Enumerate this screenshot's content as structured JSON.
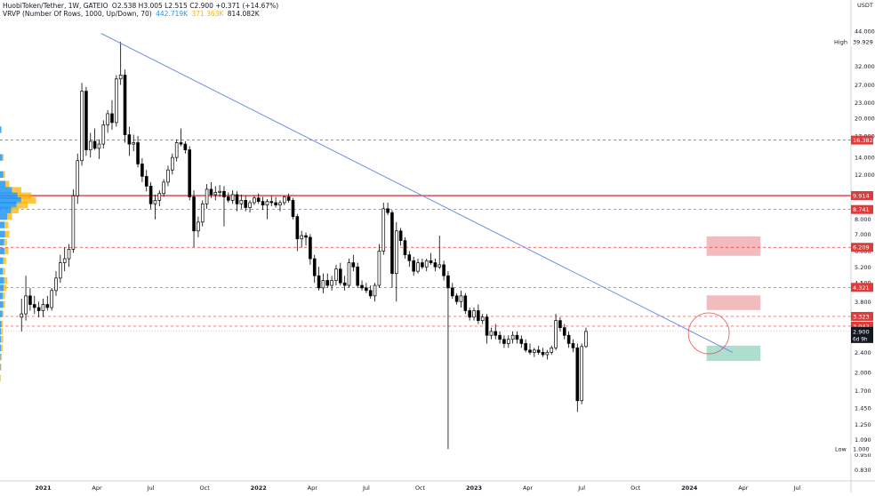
{
  "header": {
    "symbol_line": "HuobiToken/Tether, 1W, GATEIO",
    "ohlc": "O2.538  H3.005  L2.515  C2.900  +0.371 (+14.67%)",
    "vrvp_label": "VRVP (Number Of Rows, 1000, Up/Down, 70)",
    "vrvp_up": "442.719K",
    "vrvp_down": "371.363K",
    "vrvp_total": "814.082K",
    "currency": "USDT"
  },
  "colors": {
    "up_volume": "#2196f3",
    "down_volume": "#ffb300",
    "trendline": "#6a8ee8",
    "level_red": "#e03a3a",
    "resistance_zone": "#f0b0b3",
    "support_zone": "#9fd8c8",
    "price_label": "#131722",
    "candle": "#000000"
  },
  "chart_data": {
    "type": "candlestick",
    "title": "HuobiToken/Tether, 1W, GATEIO",
    "ylabel": "USDT",
    "y_scale": "log",
    "ylim": [
      0.75,
      52
    ],
    "x_ticks": [
      "2021",
      "Apr",
      "Jul",
      "Oct",
      "2022",
      "Apr",
      "Jul",
      "Oct",
      "2023",
      "Apr",
      "Jul",
      "Oct",
      "2024",
      "Apr",
      "Jul"
    ],
    "y_ticks": [
      44.0,
      32.0,
      27.0,
      23.0,
      20.0,
      17.0,
      14.0,
      12.0,
      8.0,
      7.0,
      6.0,
      5.2,
      4.5,
      3.8,
      3.3,
      2.8,
      2.4,
      2.0,
      1.7,
      1.45,
      1.25,
      1.09,
      0.95,
      0.83
    ],
    "current_price": 2.9,
    "countdown": "6d 9h",
    "high": {
      "label": "High",
      "value": "39.929"
    },
    "low": {
      "label": "Low",
      "value": "1.000"
    },
    "levels": [
      {
        "value": 16.382,
        "label": "16.382",
        "style": "dashed"
      },
      {
        "value": 9.914,
        "label": "9.914",
        "style": "solid"
      },
      {
        "value": 8.741,
        "label": "8.741",
        "style": "dashed"
      },
      {
        "value": 6.209,
        "label": "6.209",
        "style": "dashed"
      },
      {
        "value": 4.321,
        "label": "4.321",
        "style": "dashed"
      },
      {
        "value": 3.323,
        "label": "3.323",
        "style": "dashed"
      },
      {
        "value": 3.042,
        "label": "3.042",
        "style": "dashed"
      }
    ],
    "zones": [
      {
        "kind": "resistance",
        "from": 5.75,
        "to": 6.85,
        "start": 2024.08
      },
      {
        "kind": "resistance",
        "from": 3.52,
        "to": 4.02,
        "start": 2024.08
      },
      {
        "kind": "support",
        "from": 2.22,
        "to": 2.55,
        "start": 2024.08
      }
    ],
    "trendline": {
      "from": [
        2021.27,
        43.0
      ],
      "to": [
        2024.2,
        2.4
      ]
    },
    "highlight_circle": {
      "t": 2024.09,
      "price": 2.85
    },
    "volume_profile": [
      [
        18.0,
        0.2,
        0.2
      ],
      [
        14.0,
        0.5,
        0.3
      ],
      [
        12.0,
        0.7,
        0.4
      ],
      [
        11.0,
        1.2,
        0.8
      ],
      [
        10.4,
        2.6,
        2.0
      ],
      [
        9.9,
        3.8,
        3.0
      ],
      [
        9.5,
        4.6,
        3.2
      ],
      [
        9.1,
        3.6,
        2.4
      ],
      [
        8.7,
        2.4,
        1.6
      ],
      [
        8.2,
        1.6,
        1.0
      ],
      [
        7.6,
        1.0,
        0.8
      ],
      [
        7.0,
        1.1,
        0.9
      ],
      [
        6.5,
        0.9,
        0.6
      ],
      [
        6.0,
        1.0,
        0.8
      ],
      [
        5.5,
        0.7,
        0.6
      ],
      [
        5.0,
        0.6,
        0.5
      ],
      [
        4.6,
        0.9,
        0.7
      ],
      [
        4.3,
        0.8,
        0.6
      ],
      [
        4.0,
        0.6,
        0.5
      ],
      [
        3.7,
        0.7,
        0.4
      ],
      [
        3.4,
        0.5,
        0.3
      ],
      [
        3.1,
        0.3,
        0.3
      ],
      [
        2.9,
        0.2,
        0.4
      ],
      [
        2.7,
        0.2,
        0.5
      ],
      [
        2.5,
        0.2,
        0.4
      ],
      [
        2.3,
        0.1,
        0.3
      ],
      [
        2.1,
        0.1,
        0.2
      ],
      [
        1.9,
        0.05,
        0.1
      ]
    ],
    "candles": [
      [
        2020.9,
        3.3,
        3.9,
        2.9,
        3.4
      ],
      [
        2020.92,
        3.4,
        4.8,
        3.2,
        4.0
      ],
      [
        2020.94,
        4.0,
        4.3,
        3.5,
        3.7
      ],
      [
        2020.96,
        3.7,
        4.0,
        3.4,
        3.6
      ],
      [
        2020.98,
        3.6,
        3.8,
        3.3,
        3.5
      ],
      [
        2021.0,
        3.5,
        3.9,
        3.3,
        3.7
      ],
      [
        2021.02,
        3.7,
        4.0,
        3.5,
        3.6
      ],
      [
        2021.04,
        3.6,
        4.3,
        3.5,
        4.2
      ],
      [
        2021.06,
        4.2,
        5.0,
        4.0,
        4.7
      ],
      [
        2021.08,
        4.7,
        5.8,
        4.5,
        5.4
      ],
      [
        2021.1,
        5.4,
        6.2,
        5.0,
        5.6
      ],
      [
        2021.12,
        5.6,
        6.4,
        5.2,
        6.1
      ],
      [
        2021.14,
        6.1,
        10.5,
        5.9,
        9.9
      ],
      [
        2021.16,
        9.9,
        14.5,
        9.2,
        13.6
      ],
      [
        2021.18,
        13.6,
        27.5,
        13.0,
        25.5
      ],
      [
        2021.2,
        25.5,
        26.5,
        14.2,
        15.0
      ],
      [
        2021.22,
        15.0,
        17.5,
        14.0,
        16.2
      ],
      [
        2021.24,
        16.2,
        18.2,
        15.0,
        15.2
      ],
      [
        2021.26,
        15.2,
        16.5,
        13.8,
        15.8
      ],
      [
        2021.28,
        15.8,
        19.6,
        15.2,
        18.8
      ],
      [
        2021.3,
        18.8,
        21.5,
        17.5,
        20.8
      ],
      [
        2021.32,
        20.8,
        23.5,
        18.0,
        19.2
      ],
      [
        2021.34,
        19.2,
        29.5,
        18.5,
        28.5
      ],
      [
        2021.36,
        28.5,
        39.9,
        27.0,
        29.5
      ],
      [
        2021.38,
        29.5,
        31.0,
        16.0,
        17.2
      ],
      [
        2021.4,
        17.2,
        18.5,
        14.2,
        15.8
      ],
      [
        2021.42,
        15.8,
        17.2,
        14.8,
        16.0
      ],
      [
        2021.44,
        16.0,
        17.0,
        12.8,
        13.2
      ],
      [
        2021.46,
        13.2,
        13.9,
        11.2,
        11.8
      ],
      [
        2021.48,
        11.8,
        12.5,
        10.3,
        10.8
      ],
      [
        2021.5,
        10.8,
        11.2,
        8.8,
        9.2
      ],
      [
        2021.52,
        9.2,
        10.0,
        8.0,
        9.5
      ],
      [
        2021.54,
        9.5,
        10.4,
        9.0,
        10.1
      ],
      [
        2021.56,
        10.1,
        11.5,
        9.8,
        11.2
      ],
      [
        2021.58,
        11.2,
        13.0,
        10.8,
        12.5
      ],
      [
        2021.6,
        12.5,
        14.5,
        12.0,
        14.0
      ],
      [
        2021.62,
        14.0,
        16.5,
        13.5,
        16.0
      ],
      [
        2021.64,
        16.0,
        18.2,
        15.5,
        15.8
      ],
      [
        2021.66,
        15.8,
        16.2,
        14.5,
        15.0
      ],
      [
        2021.68,
        15.0,
        15.5,
        9.5,
        9.8
      ],
      [
        2021.7,
        9.8,
        10.4,
        6.2,
        7.2
      ],
      [
        2021.72,
        7.2,
        8.2,
        6.8,
        7.8
      ],
      [
        2021.74,
        7.8,
        9.5,
        7.5,
        9.2
      ],
      [
        2021.76,
        9.2,
        11.0,
        8.8,
        10.5
      ],
      [
        2021.78,
        10.5,
        11.2,
        9.7,
        10.0
      ],
      [
        2021.8,
        10.0,
        10.8,
        9.5,
        10.2
      ],
      [
        2021.82,
        10.2,
        10.9,
        9.8,
        10.3
      ],
      [
        2021.84,
        10.3,
        10.8,
        7.5,
        9.8
      ],
      [
        2021.86,
        9.8,
        10.2,
        9.3,
        9.5
      ],
      [
        2021.88,
        9.5,
        10.4,
        9.2,
        10.0
      ],
      [
        2021.9,
        10.0,
        10.3,
        8.6,
        9.2
      ],
      [
        2021.92,
        9.2,
        10.0,
        8.8,
        9.5
      ],
      [
        2021.94,
        9.5,
        9.9,
        8.6,
        8.9
      ],
      [
        2021.96,
        8.9,
        9.5,
        8.5,
        9.3
      ],
      [
        2021.98,
        9.3,
        9.9,
        9.1,
        9.7
      ],
      [
        2022.0,
        9.7,
        10.1,
        9.2,
        9.4
      ],
      [
        2022.02,
        9.4,
        9.8,
        8.7,
        9.1
      ],
      [
        2022.04,
        9.1,
        9.6,
        8.0,
        9.4
      ],
      [
        2022.06,
        9.4,
        9.9,
        9.0,
        9.3
      ],
      [
        2022.08,
        9.3,
        9.8,
        8.9,
        9.1
      ],
      [
        2022.1,
        9.1,
        9.5,
        8.6,
        9.3
      ],
      [
        2022.12,
        9.3,
        9.9,
        9.1,
        9.8
      ],
      [
        2022.14,
        9.8,
        10.1,
        9.3,
        9.5
      ],
      [
        2022.16,
        9.5,
        9.7,
        8.0,
        8.2
      ],
      [
        2022.18,
        8.2,
        8.4,
        6.0,
        6.7
      ],
      [
        2022.2,
        6.7,
        7.2,
        6.2,
        6.9
      ],
      [
        2022.22,
        6.9,
        7.1,
        6.3,
        6.8
      ],
      [
        2022.24,
        6.8,
        7.0,
        5.3,
        5.6
      ],
      [
        2022.26,
        5.6,
        5.8,
        4.5,
        4.8
      ],
      [
        2022.28,
        4.8,
        5.2,
        4.2,
        4.3
      ],
      [
        2022.3,
        4.3,
        4.9,
        4.1,
        4.6
      ],
      [
        2022.32,
        4.6,
        4.9,
        4.3,
        4.4
      ],
      [
        2022.34,
        4.4,
        4.8,
        4.2,
        4.6
      ],
      [
        2022.36,
        4.6,
        5.3,
        4.4,
        5.1
      ],
      [
        2022.38,
        5.1,
        5.4,
        4.4,
        4.5
      ],
      [
        2022.4,
        4.5,
        4.8,
        4.2,
        4.4
      ],
      [
        2022.42,
        4.4,
        5.6,
        4.3,
        5.4
      ],
      [
        2022.44,
        5.4,
        5.8,
        5.0,
        5.2
      ],
      [
        2022.46,
        5.2,
        5.4,
        4.3,
        4.4
      ],
      [
        2022.48,
        4.4,
        4.6,
        4.2,
        4.3
      ],
      [
        2022.5,
        4.3,
        4.5,
        4.1,
        4.2
      ],
      [
        2022.52,
        4.2,
        4.4,
        3.9,
        4.0
      ],
      [
        2022.54,
        4.0,
        4.5,
        3.8,
        4.4
      ],
      [
        2022.56,
        4.4,
        6.4,
        4.3,
        6.0
      ],
      [
        2022.58,
        6.0,
        9.3,
        5.8,
        8.8
      ],
      [
        2022.6,
        8.8,
        9.3,
        8.3,
        8.5
      ],
      [
        2022.62,
        8.5,
        8.7,
        4.3,
        4.9
      ],
      [
        2022.64,
        4.9,
        7.8,
        3.8,
        7.2
      ],
      [
        2022.66,
        7.2,
        7.4,
        6.3,
        6.6
      ],
      [
        2022.68,
        6.6,
        6.8,
        5.6,
        5.8
      ],
      [
        2022.7,
        5.8,
        6.0,
        5.2,
        5.5
      ],
      [
        2022.72,
        5.5,
        5.7,
        4.8,
        5.0
      ],
      [
        2022.74,
        5.0,
        5.6,
        4.9,
        5.4
      ],
      [
        2022.76,
        5.4,
        5.6,
        5.1,
        5.2
      ],
      [
        2022.78,
        5.2,
        5.6,
        5.0,
        5.5
      ],
      [
        2022.8,
        5.5,
        5.9,
        5.3,
        5.4
      ],
      [
        2022.82,
        5.4,
        5.6,
        5.0,
        5.2
      ],
      [
        2022.84,
        5.2,
        6.9,
        5.1,
        5.3
      ],
      [
        2022.86,
        5.3,
        5.5,
        4.6,
        4.8
      ],
      [
        2022.88,
        4.8,
        5.0,
        1.0,
        4.3
      ],
      [
        2022.9,
        4.3,
        4.5,
        3.9,
        4.0
      ],
      [
        2022.92,
        4.0,
        4.1,
        3.7,
        3.8
      ],
      [
        2022.94,
        3.8,
        4.2,
        3.6,
        4.0
      ],
      [
        2022.96,
        4.0,
        4.1,
        3.4,
        3.5
      ],
      [
        2022.98,
        3.5,
        3.6,
        3.2,
        3.3
      ],
      [
        2023.0,
        3.3,
        3.6,
        3.2,
        3.5
      ],
      [
        2023.02,
        3.5,
        3.7,
        3.1,
        3.2
      ],
      [
        2023.04,
        3.2,
        3.4,
        3.1,
        3.3
      ],
      [
        2023.06,
        3.3,
        3.4,
        2.6,
        2.8
      ],
      [
        2023.08,
        2.8,
        3.0,
        2.7,
        2.9
      ],
      [
        2023.1,
        2.9,
        3.1,
        2.7,
        2.8
      ],
      [
        2023.12,
        2.8,
        2.9,
        2.6,
        2.7
      ],
      [
        2023.14,
        2.7,
        2.8,
        2.5,
        2.6
      ],
      [
        2023.16,
        2.6,
        2.8,
        2.5,
        2.7
      ],
      [
        2023.18,
        2.7,
        2.9,
        2.6,
        2.8
      ],
      [
        2023.2,
        2.8,
        2.9,
        2.6,
        2.7
      ],
      [
        2023.22,
        2.7,
        2.8,
        2.5,
        2.6
      ],
      [
        2023.24,
        2.6,
        2.7,
        2.4,
        2.45
      ],
      [
        2023.26,
        2.45,
        2.6,
        2.35,
        2.4
      ],
      [
        2023.28,
        2.4,
        2.5,
        2.3,
        2.45
      ],
      [
        2023.3,
        2.45,
        2.55,
        2.35,
        2.4
      ],
      [
        2023.32,
        2.4,
        2.5,
        2.3,
        2.35
      ],
      [
        2023.34,
        2.35,
        2.45,
        2.25,
        2.4
      ],
      [
        2023.36,
        2.4,
        2.55,
        2.35,
        2.5
      ],
      [
        2023.38,
        2.5,
        3.4,
        2.45,
        3.2
      ],
      [
        2023.4,
        3.2,
        3.3,
        2.9,
        3.0
      ],
      [
        2023.42,
        3.0,
        3.1,
        2.7,
        2.8
      ],
      [
        2023.44,
        2.8,
        2.9,
        2.5,
        2.6
      ],
      [
        2023.46,
        2.6,
        2.7,
        2.4,
        2.5
      ],
      [
        2023.48,
        2.5,
        2.6,
        1.4,
        1.55
      ],
      [
        2023.5,
        1.55,
        2.6,
        1.5,
        2.53
      ],
      [
        2023.52,
        2.53,
        3.0,
        2.5,
        2.9
      ]
    ]
  }
}
